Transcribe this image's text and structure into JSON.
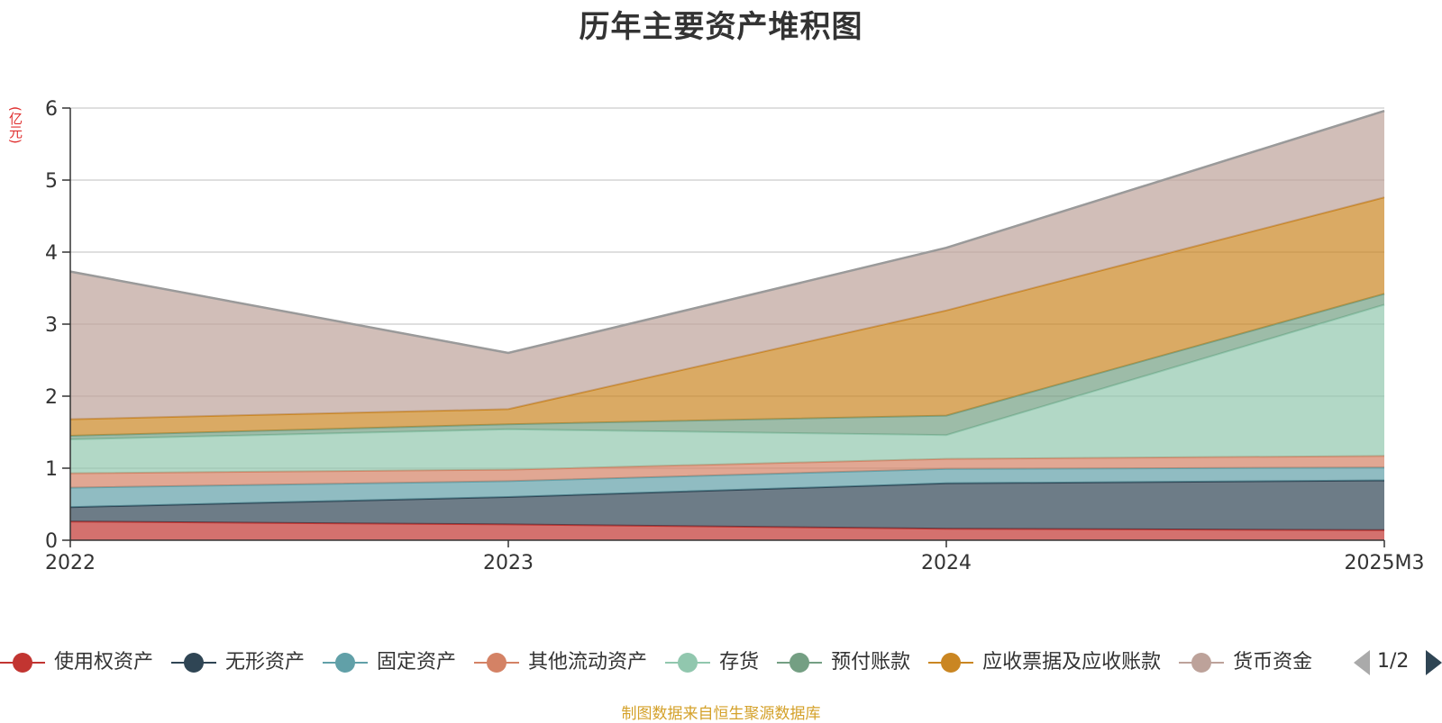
{
  "chart_data": {
    "type": "area",
    "stacked": true,
    "title": "历年主要资产堆积图",
    "ylabel": "(亿元)",
    "xlabel": "",
    "categories": [
      "2022",
      "2023",
      "2024",
      "2025M3"
    ],
    "ylim": [
      0,
      6
    ],
    "yticks": [
      "0",
      "1",
      "2",
      "3",
      "4",
      "5",
      "6"
    ],
    "grid": true,
    "legend_position": "bottom",
    "series": [
      {
        "name": "使用权资产",
        "color": "#c23531",
        "values": [
          0.26,
          0.22,
          0.16,
          0.14
        ]
      },
      {
        "name": "无形资产",
        "color": "#2f4554",
        "values": [
          0.2,
          0.38,
          0.63,
          0.69
        ]
      },
      {
        "name": "固定资产",
        "color": "#61a0a8",
        "values": [
          0.27,
          0.22,
          0.2,
          0.18
        ]
      },
      {
        "name": "其他流动资产",
        "color": "#d48265",
        "values": [
          0.2,
          0.16,
          0.14,
          0.16
        ]
      },
      {
        "name": "存货",
        "color": "#91c7ae",
        "values": [
          0.47,
          0.56,
          0.33,
          2.1
        ]
      },
      {
        "name": "预付账款",
        "color": "#749f83",
        "values": [
          0.05,
          0.07,
          0.27,
          0.15
        ]
      },
      {
        "name": "应收票据及应收账款",
        "color": "#ca8622",
        "values": [
          0.23,
          0.21,
          1.46,
          1.34
        ]
      },
      {
        "name": "货币资金",
        "color": "#bda29a",
        "values": [
          2.05,
          0.78,
          0.87,
          1.2
        ]
      }
    ]
  },
  "legend": {
    "visible_items": [
      "使用权资产",
      "无形资产",
      "固定资产",
      "其他流动资产",
      "存货",
      "预付账款",
      "应收票据及应收账款",
      "货币资金"
    ],
    "page_label": "1/2"
  },
  "source_note": "制图数据来自恒生聚源数据库"
}
